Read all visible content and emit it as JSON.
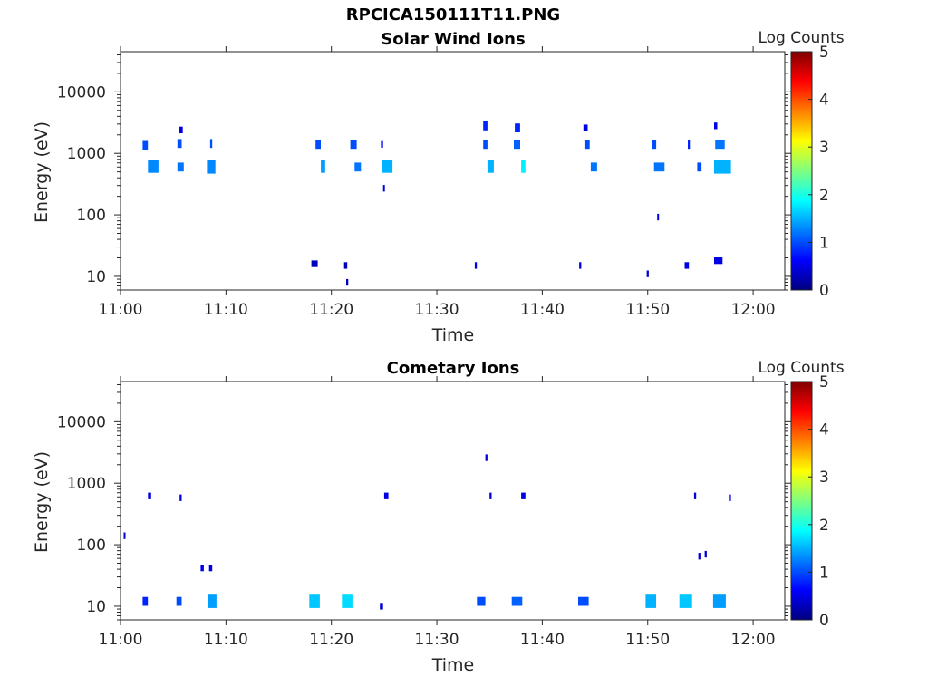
{
  "figure": {
    "title": "RPCICA150111T11.PNG"
  },
  "colorbar": {
    "label": "Log Counts",
    "range": [
      0,
      5
    ],
    "ticks": [
      "0",
      "1",
      "2",
      "3",
      "4",
      "5"
    ],
    "colormap": "jet",
    "stops": [
      "#00007f",
      "#0000ff",
      "#007fff",
      "#00ffff",
      "#7fff7f",
      "#ffff00",
      "#ff7f00",
      "#ff0000",
      "#7f0000"
    ]
  },
  "chart_data": [
    {
      "type": "heatmap",
      "title": "Solar Wind Ions",
      "xlabel": "Time",
      "ylabel": "Energy (eV)",
      "y_scale": "log",
      "ylim": [
        6,
        45000
      ],
      "xlim": [
        "11:00",
        "12:03"
      ],
      "x_ticks": [
        "11:00",
        "11:10",
        "11:20",
        "11:30",
        "11:40",
        "11:50",
        "12:00"
      ],
      "y_ticks": [
        "10",
        "100",
        "1000",
        "10000"
      ],
      "cells": [
        {
          "t": "11:02.1",
          "dt": 0.5,
          "e": 1350,
          "v": 1.0
        },
        {
          "t": "11:02.6",
          "dt": 1.0,
          "e": 620,
          "v": 1.3
        },
        {
          "t": "11:05.4",
          "dt": 0.4,
          "e": 1450,
          "v": 1.0
        },
        {
          "t": "11:05.5",
          "dt": 0.4,
          "e": 2400,
          "v": 0.5
        },
        {
          "t": "11:05.4",
          "dt": 0.6,
          "e": 600,
          "v": 1.2
        },
        {
          "t": "11:08.5",
          "dt": 0.2,
          "e": 1450,
          "v": 1.0
        },
        {
          "t": "11:08.2",
          "dt": 0.8,
          "e": 600,
          "v": 1.3
        },
        {
          "t": "11:18.5",
          "dt": 0.5,
          "e": 1400,
          "v": 1.0
        },
        {
          "t": "11:19.0",
          "dt": 0.4,
          "e": 620,
          "v": 1.4
        },
        {
          "t": "11:18.1",
          "dt": 0.6,
          "e": 16,
          "v": 0.3
        },
        {
          "t": "11:21.2",
          "dt": 0.3,
          "e": 15,
          "v": 0.3
        },
        {
          "t": "11:21.4",
          "dt": 0.2,
          "e": 8,
          "v": 0.3
        },
        {
          "t": "11:21.8",
          "dt": 0.6,
          "e": 1400,
          "v": 1.0
        },
        {
          "t": "11:22.2",
          "dt": 0.6,
          "e": 600,
          "v": 1.2
        },
        {
          "t": "11:24.7",
          "dt": 0.2,
          "e": 1400,
          "v": 0.6
        },
        {
          "t": "11:24.8",
          "dt": 1.0,
          "e": 620,
          "v": 1.5
        },
        {
          "t": "11:24.9",
          "dt": 0.15,
          "e": 270,
          "v": 0.5
        },
        {
          "t": "11:33.6",
          "dt": 0.2,
          "e": 15,
          "v": 0.5
        },
        {
          "t": "11:34.4",
          "dt": 0.4,
          "e": 2800,
          "v": 0.8
        },
        {
          "t": "11:34.4",
          "dt": 0.4,
          "e": 1400,
          "v": 1.0
        },
        {
          "t": "11:34.8",
          "dt": 0.6,
          "e": 620,
          "v": 1.5
        },
        {
          "t": "11:37.4",
          "dt": 0.5,
          "e": 2600,
          "v": 0.8
        },
        {
          "t": "11:37.3",
          "dt": 0.6,
          "e": 1400,
          "v": 1.1
        },
        {
          "t": "11:38.0",
          "dt": 0.4,
          "e": 620,
          "v": 1.8
        },
        {
          "t": "11:43.5",
          "dt": 0.2,
          "e": 15,
          "v": 0.5
        },
        {
          "t": "11:43.9",
          "dt": 0.4,
          "e": 2600,
          "v": 0.5
        },
        {
          "t": "11:44.0",
          "dt": 0.5,
          "e": 1400,
          "v": 1.0
        },
        {
          "t": "11:44.6",
          "dt": 0.6,
          "e": 600,
          "v": 1.2
        },
        {
          "t": "11:49.9",
          "dt": 0.2,
          "e": 11,
          "v": 0.4
        },
        {
          "t": "11:50.4",
          "dt": 0.4,
          "e": 1400,
          "v": 1.0
        },
        {
          "t": "11:50.6",
          "dt": 1.0,
          "e": 600,
          "v": 1.2
        },
        {
          "t": "11:50.9",
          "dt": 0.15,
          "e": 92,
          "v": 0.5
        },
        {
          "t": "11:53.5",
          "dt": 0.4,
          "e": 15,
          "v": 0.5
        },
        {
          "t": "11:53.8",
          "dt": 0.2,
          "e": 1400,
          "v": 0.8
        },
        {
          "t": "11:54.7",
          "dt": 0.4,
          "e": 600,
          "v": 1.0
        },
        {
          "t": "11:56.3",
          "dt": 0.3,
          "e": 2800,
          "v": 0.5
        },
        {
          "t": "11:56.4",
          "dt": 0.9,
          "e": 1400,
          "v": 1.2
        },
        {
          "t": "11:56.3",
          "dt": 1.6,
          "e": 600,
          "v": 1.5
        },
        {
          "t": "11:56.3",
          "dt": 0.8,
          "e": 18,
          "v": 0.5
        }
      ]
    },
    {
      "type": "heatmap",
      "title": "Cometary Ions",
      "xlabel": "Time",
      "ylabel": "Energy (eV)",
      "y_scale": "log",
      "ylim": [
        6,
        45000
      ],
      "xlim": [
        "11:00",
        "12:03"
      ],
      "x_ticks": [
        "11:00",
        "11:10",
        "11:20",
        "11:30",
        "11:40",
        "11:50",
        "12:00"
      ],
      "y_ticks": [
        "10",
        "100",
        "1000",
        "10000"
      ],
      "cells": [
        {
          "t": "11:00.3",
          "dt": 0.15,
          "e": 140,
          "v": 0.4
        },
        {
          "t": "11:02.1",
          "dt": 0.5,
          "e": 12,
          "v": 0.8
        },
        {
          "t": "11:02.6",
          "dt": 0.3,
          "e": 620,
          "v": 0.5
        },
        {
          "t": "11:05.3",
          "dt": 0.5,
          "e": 12,
          "v": 1.0
        },
        {
          "t": "11:05.6",
          "dt": 0.2,
          "e": 580,
          "v": 0.5
        },
        {
          "t": "11:07.6",
          "dt": 0.3,
          "e": 42,
          "v": 0.5
        },
        {
          "t": "11:08.3",
          "dt": 0.8,
          "e": 12,
          "v": 1.4
        },
        {
          "t": "11:08.4",
          "dt": 0.3,
          "e": 42,
          "v": 0.5
        },
        {
          "t": "11:17.9",
          "dt": 1.0,
          "e": 12,
          "v": 1.6
        },
        {
          "t": "11:21.0",
          "dt": 1.0,
          "e": 12,
          "v": 1.7
        },
        {
          "t": "11:24.6",
          "dt": 0.3,
          "e": 10,
          "v": 0.4
        },
        {
          "t": "11:25.0",
          "dt": 0.4,
          "e": 620,
          "v": 0.5
        },
        {
          "t": "11:33.8",
          "dt": 0.8,
          "e": 12,
          "v": 1.0
        },
        {
          "t": "11:34.6",
          "dt": 0.2,
          "e": 2600,
          "v": 0.5
        },
        {
          "t": "11:35.0",
          "dt": 0.2,
          "e": 620,
          "v": 0.5
        },
        {
          "t": "11:37.1",
          "dt": 1.0,
          "e": 12,
          "v": 1.1
        },
        {
          "t": "11:38.0",
          "dt": 0.4,
          "e": 620,
          "v": 0.5
        },
        {
          "t": "11:43.4",
          "dt": 1.0,
          "e": 12,
          "v": 1.0
        },
        {
          "t": "11:49.8",
          "dt": 1.0,
          "e": 12,
          "v": 1.5
        },
        {
          "t": "11:53.0",
          "dt": 1.2,
          "e": 12,
          "v": 1.6
        },
        {
          "t": "11:54.4",
          "dt": 0.2,
          "e": 620,
          "v": 0.5
        },
        {
          "t": "11:54.8",
          "dt": 0.2,
          "e": 65,
          "v": 0.4
        },
        {
          "t": "11:55.4",
          "dt": 0.2,
          "e": 70,
          "v": 0.4
        },
        {
          "t": "11:56.2",
          "dt": 1.2,
          "e": 12,
          "v": 1.4
        },
        {
          "t": "11:57.7",
          "dt": 0.2,
          "e": 580,
          "v": 0.5
        }
      ]
    }
  ]
}
